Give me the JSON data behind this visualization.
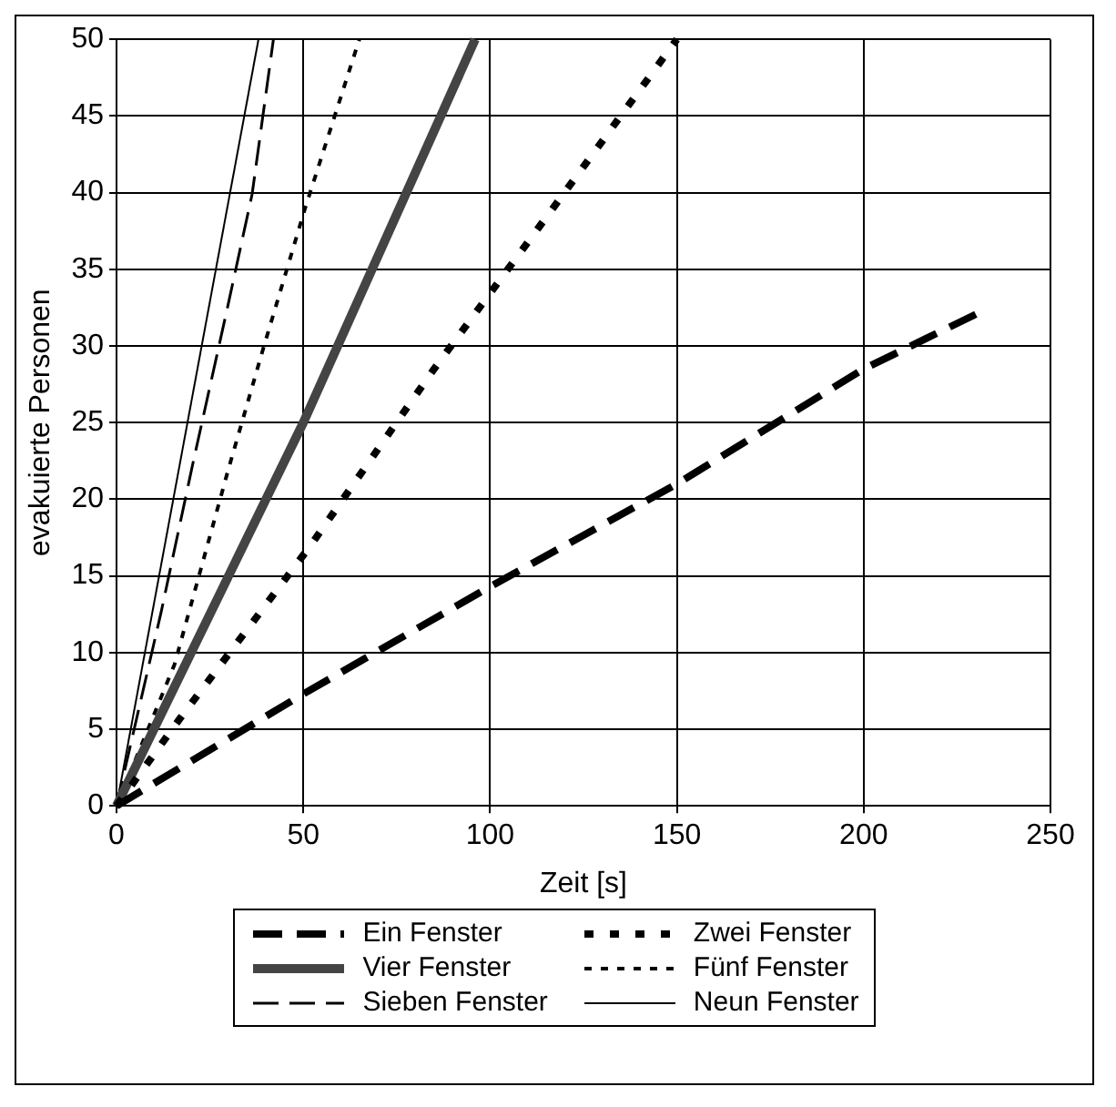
{
  "chart_data": {
    "type": "line",
    "xlabel": "Zeit [s]",
    "ylabel": "evakuierte Personen",
    "xlim": [
      0,
      250
    ],
    "xticks": [
      0,
      50,
      100,
      150,
      200,
      250
    ],
    "ylim": [
      0,
      50
    ],
    "yticks": [
      0,
      5,
      10,
      15,
      20,
      25,
      30,
      35,
      40,
      45,
      50
    ],
    "grid": true,
    "legend": "bottom",
    "marker": "none",
    "series": [
      {
        "name": "Ein Fenster",
        "color": "#000000",
        "line_style": "dashed",
        "x": [
          0,
          50,
          100,
          150,
          200,
          232
        ],
        "values": [
          0,
          7.3,
          14.3,
          21,
          28.5,
          32.3
        ]
      },
      {
        "name": "Zwei Fenster",
        "color": "#000000",
        "line_style": "dotted",
        "x": [
          0,
          17,
          52,
          85,
          119,
          150
        ],
        "values": [
          0,
          5.7,
          17,
          28.5,
          39.7,
          50
        ]
      },
      {
        "name": "Vier Fenster",
        "color": "#444444",
        "line_style": "solid",
        "x": [
          0,
          50,
          96
        ],
        "values": [
          0,
          25,
          50
        ]
      },
      {
        "name": "Fünf Fenster",
        "color": "#000000",
        "line_style": "dotted",
        "x": [
          0,
          15.5,
          30,
          39,
          50.5,
          65
        ],
        "values": [
          0,
          9.2,
          22,
          29.6,
          39,
          50
        ]
      },
      {
        "name": "Sieben Fenster",
        "color": "#000000",
        "line_style": "dashed",
        "x": [
          0,
          12,
          20.5,
          29.7,
          36.3,
          42
        ],
        "values": [
          0,
          12.7,
          22.4,
          32.5,
          39.9,
          50
        ]
      },
      {
        "name": "Neun Fenster",
        "color": "#000000",
        "line_style": "solid",
        "x": [
          0,
          38
        ],
        "values": [
          0,
          50
        ]
      }
    ]
  }
}
